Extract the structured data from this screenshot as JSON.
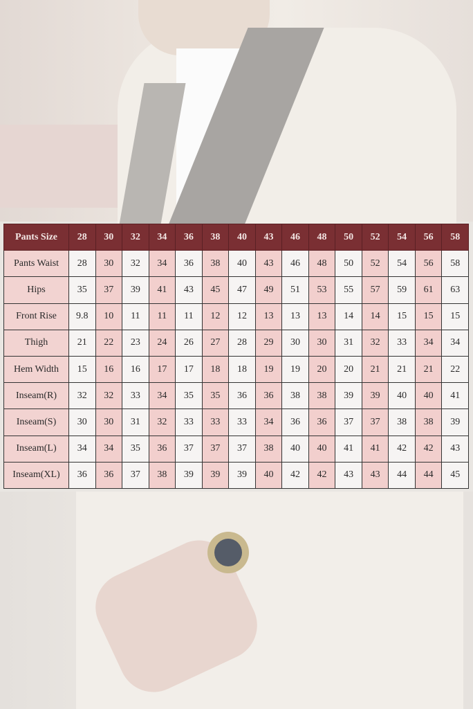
{
  "colors": {
    "header": "#7a2f33",
    "highlight": "#f2cfcd",
    "cell": "#f6f4f3"
  },
  "chart_data": {
    "type": "table",
    "header_label": "Pants Size",
    "columns": [
      "28",
      "30",
      "32",
      "34",
      "36",
      "38",
      "40",
      "43",
      "46",
      "48",
      "50",
      "52",
      "54",
      "56",
      "58"
    ],
    "rows": [
      {
        "label": "Pants Waist",
        "values": [
          "28",
          "30",
          "32",
          "34",
          "36",
          "38",
          "40",
          "43",
          "46",
          "48",
          "50",
          "52",
          "54",
          "56",
          "58"
        ]
      },
      {
        "label": "Hips",
        "values": [
          "35",
          "37",
          "39",
          "41",
          "43",
          "45",
          "47",
          "49",
          "51",
          "53",
          "55",
          "57",
          "59",
          "61",
          "63"
        ]
      },
      {
        "label": "Front Rise",
        "values": [
          "9.8",
          "10",
          "11",
          "11",
          "11",
          "12",
          "12",
          "13",
          "13",
          "13",
          "14",
          "14",
          "15",
          "15",
          "15"
        ]
      },
      {
        "label": "Thigh",
        "values": [
          "21",
          "22",
          "23",
          "24",
          "26",
          "27",
          "28",
          "29",
          "30",
          "30",
          "31",
          "32",
          "33",
          "34",
          "34"
        ]
      },
      {
        "label": "Hem Width",
        "values": [
          "15",
          "16",
          "16",
          "17",
          "17",
          "18",
          "18",
          "19",
          "19",
          "20",
          "20",
          "21",
          "21",
          "21",
          "22"
        ]
      },
      {
        "label": "Inseam(R)",
        "values": [
          "32",
          "32",
          "33",
          "34",
          "35",
          "35",
          "36",
          "36",
          "38",
          "38",
          "39",
          "39",
          "40",
          "40",
          "41"
        ]
      },
      {
        "label": "Inseam(S)",
        "values": [
          "30",
          "30",
          "31",
          "32",
          "33",
          "33",
          "33",
          "34",
          "36",
          "36",
          "37",
          "37",
          "38",
          "38",
          "39"
        ]
      },
      {
        "label": "Inseam(L)",
        "values": [
          "34",
          "34",
          "35",
          "36",
          "37",
          "37",
          "37",
          "38",
          "40",
          "40",
          "41",
          "41",
          "42",
          "42",
          "43"
        ]
      },
      {
        "label": "Inseam(XL)",
        "values": [
          "36",
          "36",
          "37",
          "38",
          "39",
          "39",
          "39",
          "40",
          "42",
          "42",
          "43",
          "43",
          "44",
          "44",
          "45"
        ]
      }
    ]
  }
}
